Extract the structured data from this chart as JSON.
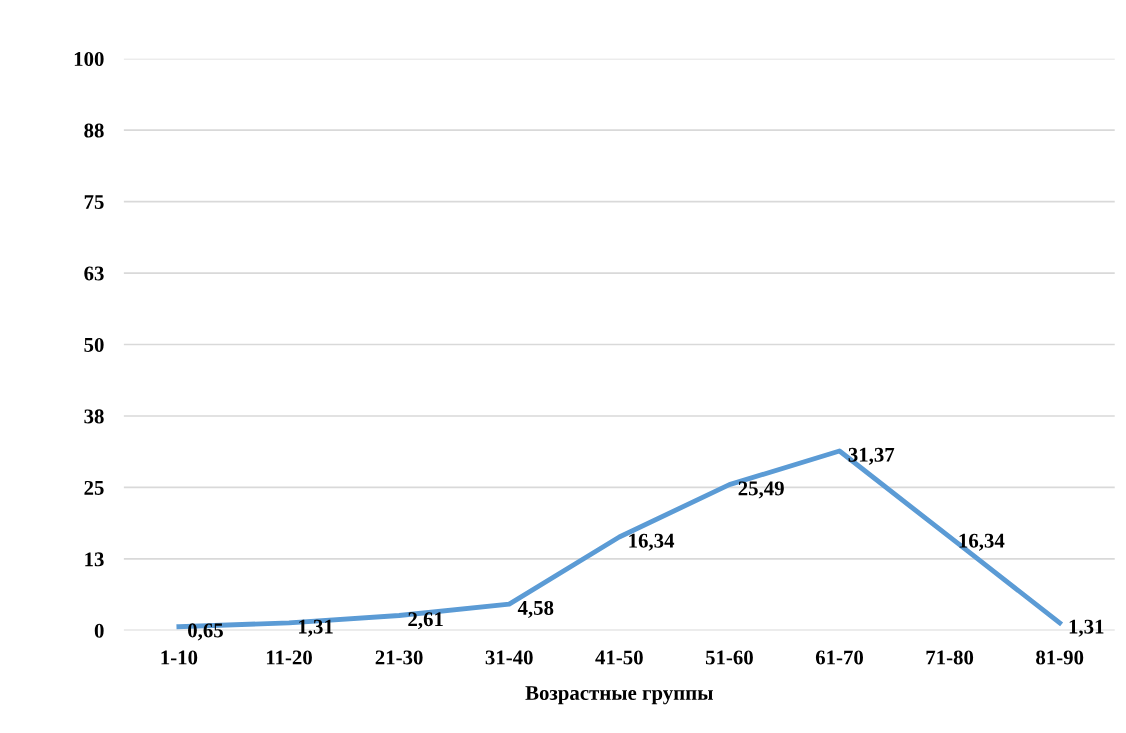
{
  "chart_data": {
    "type": "line",
    "xlabel": "Возрастные группы",
    "categories": [
      "1-10",
      "11-20",
      "21-30",
      "31-40",
      "41-50",
      "51-60",
      "61-70",
      "71-80",
      "81-90"
    ],
    "series": [
      {
        "color": "#5b9bd5",
        "values": [
          0.65,
          1.31,
          2.61,
          4.58,
          16.34,
          25.49,
          31.37,
          16.34,
          1.31
        ],
        "value_labels": [
          "0,65",
          "1,31",
          "2,61",
          "4,58",
          "16,34",
          "25,49",
          "31,37",
          "16,34",
          "1,31"
        ]
      }
    ],
    "ylim": [
      0,
      100
    ],
    "yticks": [
      0,
      {
        "value": 12.5,
        "label": "13"
      },
      25,
      {
        "value": 37.5,
        "label": "38"
      },
      50,
      {
        "value": 62.5,
        "label": "63"
      },
      75,
      {
        "value": 87.5,
        "label": "88"
      },
      100
    ],
    "grid": "y",
    "marker": "none",
    "line_style": "solid"
  }
}
